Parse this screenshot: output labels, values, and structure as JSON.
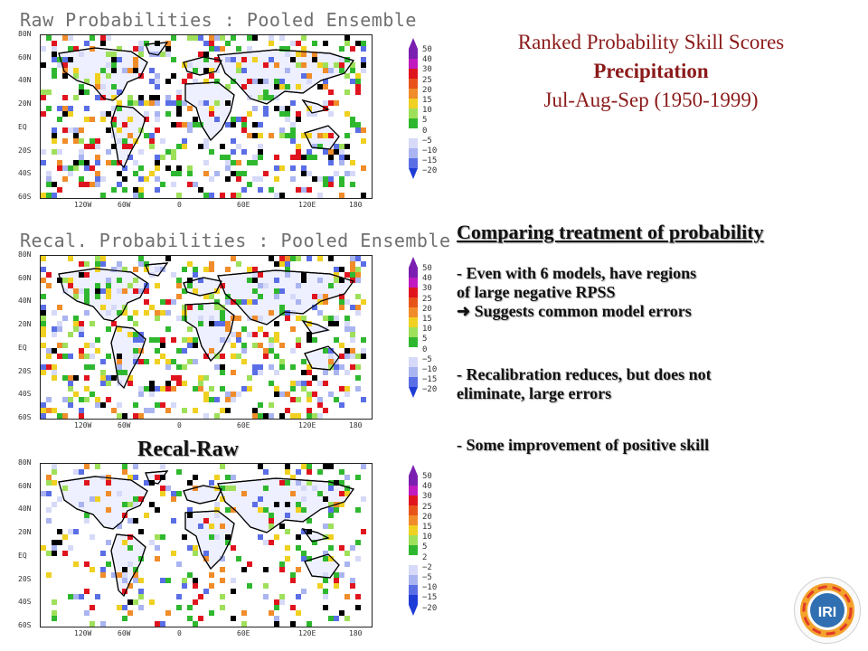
{
  "header": {
    "line1": "Ranked Probability Skill Scores",
    "line2": "Precipitation",
    "line3": "Jul-Aug-Sep  (1950-1999)"
  },
  "maps": [
    {
      "title": "Raw Probabilities : Pooled Ensemble"
    },
    {
      "title": "Recal. Probabilities : Pooled Ensemble"
    },
    {
      "title": "",
      "overlay_label": "Recal-Raw"
    }
  ],
  "lat_labels": [
    "80N",
    "60N",
    "40N",
    "20N",
    "EQ",
    "20S",
    "40S",
    "60S"
  ],
  "lon_labels": [
    "120W",
    "60W",
    "0",
    "60E",
    "120E",
    "180"
  ],
  "colorbar_top": [
    "50",
    "40",
    "30",
    "25",
    "20",
    "15",
    "10",
    "5",
    "0",
    "−5",
    "−10",
    "−15",
    "−20"
  ],
  "colorbar_bottom": [
    "50",
    "40",
    "30",
    "25",
    "20",
    "15",
    "10",
    "5",
    "2",
    "−2",
    "−5",
    "−10",
    "−15",
    "−20"
  ],
  "colors": {
    "purple": "#7a1fb0",
    "magenta": "#c01ac0",
    "red": "#e0141e",
    "darkorange": "#e8531a",
    "orange": "#f08c2a",
    "yellow": "#f0d020",
    "lightgreen": "#9ee05a",
    "green": "#2fb82f",
    "white": "#ffffff",
    "lavender": "#d6daf8",
    "lightblue": "#aab4f0",
    "blue": "#5a6ee6",
    "darkblue": "#1e3cd6",
    "title_red": "#8b1a1a"
  },
  "text": {
    "heading": "Comparing treatment of probability",
    "bullet1_l1": "- Even with 6 models, have regions",
    "bullet1_l2": "of large negative RPSS",
    "bullet1_l3": "Suggests common model errors",
    "bullet2_l1": "- Recalibration reduces, but does not",
    "bullet2_l2": "eliminate, large errors",
    "bullet3": "- Some improvement of positive skill"
  },
  "logo": {
    "text": "IRI"
  }
}
